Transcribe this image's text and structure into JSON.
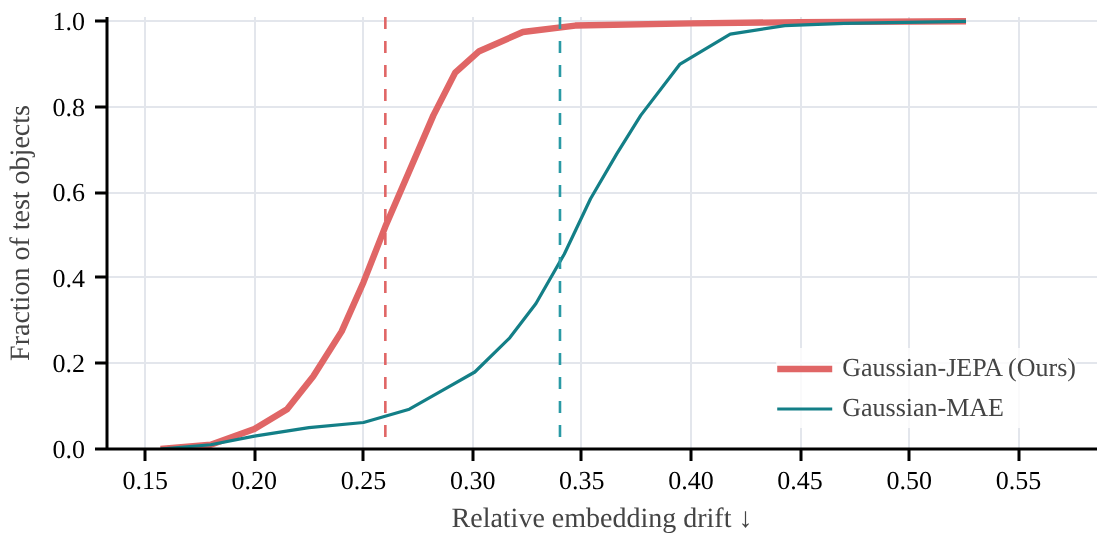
{
  "chart_data": {
    "type": "line",
    "xlabel": "Relative embedding drift ↓",
    "ylabel": "Fraction of test objects",
    "xlim": [
      0.1325,
      0.586
    ],
    "ylim": [
      0,
      1.01
    ],
    "xticks": [
      {
        "value": 0.15,
        "label": "0.15"
      },
      {
        "value": 0.2,
        "label": "0.20"
      },
      {
        "value": 0.25,
        "label": "0.25"
      },
      {
        "value": 0.3,
        "label": "0.30"
      },
      {
        "value": 0.35,
        "label": "0.35"
      },
      {
        "value": 0.4,
        "label": "0.40"
      },
      {
        "value": 0.45,
        "label": "0.45"
      },
      {
        "value": 0.5,
        "label": "0.50"
      },
      {
        "value": 0.55,
        "label": "0.55"
      }
    ],
    "yticks": [
      {
        "value": 0,
        "label": "0.0"
      },
      {
        "value": 0.2,
        "label": "0.2"
      },
      {
        "value": 0.4,
        "label": "0.4"
      },
      {
        "value": 0.6,
        "label": "0.6"
      },
      {
        "value": 0.8,
        "label": "0.8"
      },
      {
        "value": 1,
        "label": "1.0"
      }
    ],
    "grid": true,
    "legend": "bottom right",
    "line_style": "solid",
    "series": [
      {
        "name": "Gaussian-JEPA (Ours)",
        "color": "#e06666",
        "x": [
          0.157,
          0.18,
          0.2,
          0.215,
          0.227,
          0.24,
          0.25,
          0.26,
          0.271,
          0.282,
          0.292,
          0.303,
          0.323,
          0.347,
          0.4,
          0.45,
          0.526
        ],
        "values": [
          0,
          0.01,
          0.047,
          0.093,
          0.17,
          0.275,
          0.39,
          0.52,
          0.65,
          0.78,
          0.88,
          0.93,
          0.975,
          0.99,
          0.995,
          0.998,
          1.0
        ]
      },
      {
        "name": "Gaussian-MAE",
        "color": "#137f87",
        "x": [
          0.157,
          0.18,
          0.2,
          0.225,
          0.25,
          0.271,
          0.289,
          0.301,
          0.317,
          0.329,
          0.342,
          0.354,
          0.366,
          0.377,
          0.395,
          0.418,
          0.443,
          0.47,
          0.526
        ],
        "values": [
          0,
          0.01,
          0.03,
          0.05,
          0.062,
          0.093,
          0.145,
          0.18,
          0.26,
          0.34,
          0.456,
          0.585,
          0.69,
          0.78,
          0.9,
          0.97,
          0.99,
          0.995,
          1.0
        ]
      }
    ],
    "ref_lines": [
      {
        "axis": "x",
        "value": 0.26,
        "color": "#e06666",
        "line_style": "dashed"
      },
      {
        "axis": "x",
        "value": 0.34,
        "color": "#2a9aa5",
        "line_style": "dashed"
      }
    ]
  }
}
